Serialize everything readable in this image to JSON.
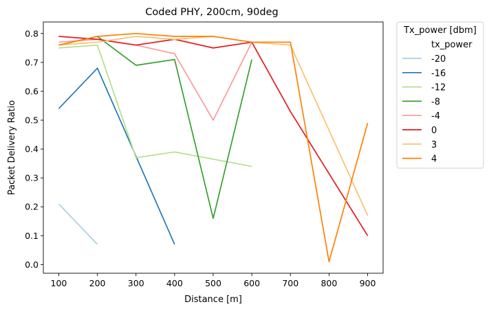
{
  "chart_data": {
    "type": "line",
    "title": "Coded PHY, 200cm, 90deg",
    "xlabel": "Distance [m]",
    "ylabel": "Packet Delivery Ratio",
    "xlim": [
      60,
      940
    ],
    "ylim": [
      -0.03,
      0.84
    ],
    "xticks": [
      100,
      200,
      300,
      400,
      500,
      600,
      700,
      800,
      900
    ],
    "yticks": [
      0.0,
      0.1,
      0.2,
      0.3,
      0.4,
      0.5,
      0.6,
      0.7,
      0.8
    ],
    "grid": false,
    "legend": {
      "title": "Tx_power [dbm]",
      "subtitle": "tx_power",
      "placement": "outside-right"
    },
    "series": [
      {
        "name": "-20",
        "color": "#a6cee3",
        "x": [
          100,
          200
        ],
        "values": [
          0.21,
          0.07
        ]
      },
      {
        "name": "-16",
        "color": "#1f78b4",
        "x": [
          100,
          200,
          400
        ],
        "values": [
          0.54,
          0.68,
          0.07
        ]
      },
      {
        "name": "-12",
        "color": "#b2df8a",
        "x": [
          100,
          200,
          300,
          400,
          600
        ],
        "values": [
          0.75,
          0.76,
          0.37,
          0.39,
          0.34
        ]
      },
      {
        "name": "-8",
        "color": "#33a02c",
        "x": [
          100,
          200,
          300,
          400,
          500,
          600
        ],
        "values": [
          0.76,
          0.79,
          0.69,
          0.71,
          0.16,
          0.71
        ]
      },
      {
        "name": "-4",
        "color": "#fb9a99",
        "x": [
          100,
          200,
          300,
          400,
          500,
          600
        ],
        "values": [
          0.77,
          0.78,
          0.76,
          0.73,
          0.5,
          0.77
        ]
      },
      {
        "name": "0",
        "color": "#e31a1c",
        "x": [
          100,
          200,
          300,
          400,
          500,
          600,
          700,
          900
        ],
        "values": [
          0.79,
          0.78,
          0.76,
          0.78,
          0.75,
          0.77,
          0.53,
          0.1
        ]
      },
      {
        "name": "3",
        "color": "#fdbf6f",
        "x": [
          100,
          200,
          300,
          400,
          500,
          600,
          700,
          900
        ],
        "values": [
          0.76,
          0.77,
          0.79,
          0.78,
          0.79,
          0.77,
          0.76,
          0.17
        ]
      },
      {
        "name": "4",
        "color": "#ff7f00",
        "x": [
          100,
          200,
          300,
          400,
          500,
          600,
          700,
          800,
          900
        ],
        "values": [
          0.76,
          0.79,
          0.8,
          0.79,
          0.79,
          0.77,
          0.77,
          0.01,
          0.49
        ]
      }
    ]
  }
}
